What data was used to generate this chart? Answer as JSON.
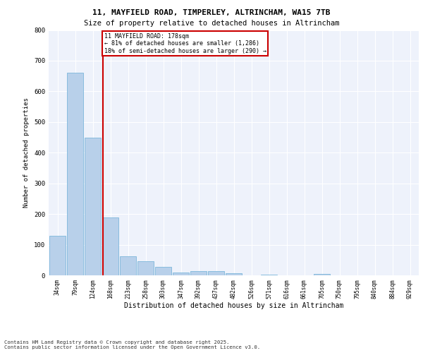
{
  "title_line1": "11, MAYFIELD ROAD, TIMPERLEY, ALTRINCHAM, WA15 7TB",
  "title_line2": "Size of property relative to detached houses in Altrincham",
  "xlabel": "Distribution of detached houses by size in Altrincham",
  "ylabel": "Number of detached properties",
  "categories": [
    "34sqm",
    "79sqm",
    "124sqm",
    "168sqm",
    "213sqm",
    "258sqm",
    "303sqm",
    "347sqm",
    "392sqm",
    "437sqm",
    "482sqm",
    "526sqm",
    "571sqm",
    "616sqm",
    "661sqm",
    "705sqm",
    "750sqm",
    "795sqm",
    "840sqm",
    "884sqm",
    "929sqm"
  ],
  "values": [
    128,
    660,
    450,
    188,
    63,
    47,
    28,
    10,
    13,
    13,
    7,
    0,
    3,
    0,
    0,
    5,
    0,
    0,
    0,
    0,
    0
  ],
  "bar_color": "#b8d0ea",
  "bar_edge_color": "#6baed6",
  "vline_color": "#cc0000",
  "annotation_text": "11 MAYFIELD ROAD: 178sqm\n← 81% of detached houses are smaller (1,286)\n18% of semi-detached houses are larger (290) →",
  "annotation_box_color": "#cc0000",
  "ylim": [
    0,
    800
  ],
  "yticks": [
    0,
    100,
    200,
    300,
    400,
    500,
    600,
    700,
    800
  ],
  "background_color": "#eef2fb",
  "grid_color": "#ffffff",
  "footer_line1": "Contains HM Land Registry data © Crown copyright and database right 2025.",
  "footer_line2": "Contains public sector information licensed under the Open Government Licence v3.0."
}
